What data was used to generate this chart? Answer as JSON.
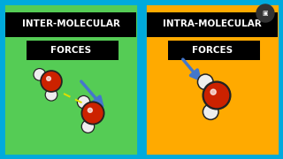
{
  "bg_color": "#00aadd",
  "left_bg": "#55cc55",
  "right_bg": "#ffaa00",
  "border_color": "#00aadd",
  "text_color_white": "#ffffff",
  "text_color_black": "#000000",
  "left_title_line1": "INTER-MOLECULAR",
  "left_title_line2": "FORCES",
  "right_title_line1": "INTRA-MOLECULAR",
  "right_title_line2": "FORCES",
  "title_box_color": "#000000",
  "arrow_color": "#4477cc",
  "dashed_color": "#dddd00",
  "red_sphere": "#cc2200",
  "white_sphere": "#eeeeee",
  "sphere_outline": "#222222"
}
